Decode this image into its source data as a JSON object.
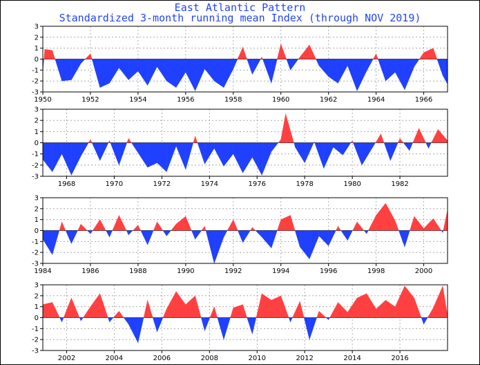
{
  "title": "East Atlantic Pattern",
  "subtitle": "Standardized 3-month running mean Index (through NOV 2019)",
  "colors": {
    "positive": "#ff4040",
    "negative": "#2040ff",
    "grid": "#999999",
    "title": "#2244ff"
  },
  "chart_data": [
    {
      "type": "area",
      "x_range": [
        1950.0,
        1967.0
      ],
      "ylim": [
        -3,
        3
      ],
      "y_ticks": [
        -3,
        -2,
        -1,
        0,
        1,
        2,
        3
      ],
      "x_ticks": [
        1950,
        1952,
        1954,
        1956,
        1958,
        1960,
        1962,
        1964,
        1966
      ],
      "grid": true,
      "x": [
        1950.0,
        1950.08,
        1950.4,
        1950.8,
        1951.2,
        1951.6,
        1952.0,
        1952.4,
        1952.8,
        1953.2,
        1953.6,
        1954.0,
        1954.4,
        1954.8,
        1955.2,
        1955.6,
        1956.0,
        1956.4,
        1956.8,
        1957.2,
        1957.6,
        1958.0,
        1958.4,
        1958.8,
        1959.2,
        1959.6,
        1960.0,
        1960.4,
        1960.8,
        1961.2,
        1961.6,
        1962.0,
        1962.4,
        1962.8,
        1963.2,
        1963.6,
        1964.0,
        1964.4,
        1964.8,
        1965.2,
        1965.6,
        1966.0,
        1966.4,
        1966.8,
        1967.0
      ],
      "y": [
        -1.2,
        0.9,
        0.8,
        -2.0,
        -1.9,
        -0.4,
        0.5,
        -2.6,
        -2.2,
        -0.8,
        -1.9,
        -1.1,
        -2.4,
        -0.7,
        -2.0,
        -2.6,
        -1.2,
        -2.9,
        -0.9,
        -2.0,
        -2.6,
        -0.9,
        1.1,
        -1.4,
        0.2,
        -2.2,
        1.4,
        -1.0,
        0.2,
        1.3,
        -0.6,
        -1.6,
        -2.2,
        -0.6,
        -2.9,
        -1.1,
        0.5,
        -2.0,
        -1.2,
        -2.8,
        -0.7,
        0.6,
        1.0,
        -1.5,
        -2.3
      ]
    },
    {
      "type": "area",
      "x_range": [
        1967.0,
        1984.0
      ],
      "ylim": [
        -3,
        3
      ],
      "y_ticks": [
        -3,
        -2,
        -1,
        0,
        1,
        2,
        3
      ],
      "x_ticks": [
        1968,
        1970,
        1972,
        1974,
        1976,
        1978,
        1980,
        1982
      ],
      "grid": true,
      "x": [
        1967.0,
        1967.4,
        1967.8,
        1968.2,
        1968.6,
        1969.0,
        1969.4,
        1969.8,
        1970.2,
        1970.6,
        1971.0,
        1971.4,
        1971.8,
        1972.2,
        1972.6,
        1973.0,
        1973.4,
        1973.8,
        1974.2,
        1974.6,
        1975.0,
        1975.4,
        1975.8,
        1976.2,
        1976.6,
        1977.0,
        1977.2,
        1977.6,
        1978.0,
        1978.4,
        1978.8,
        1979.2,
        1979.6,
        1980.0,
        1980.4,
        1980.8,
        1981.2,
        1981.6,
        1982.0,
        1982.4,
        1982.8,
        1983.2,
        1983.6,
        1984.0
      ],
      "y": [
        -1.5,
        -2.6,
        -1.0,
        -2.9,
        -1.2,
        0.3,
        -1.6,
        0.2,
        -2.0,
        0.4,
        -0.9,
        -2.2,
        -1.8,
        -2.6,
        -0.3,
        -2.4,
        0.6,
        -1.9,
        -0.5,
        -2.1,
        -1.0,
        -2.7,
        -1.3,
        -2.9,
        -0.8,
        0.3,
        2.6,
        -0.4,
        -1.8,
        0.1,
        -2.3,
        -0.4,
        -1.1,
        0.2,
        -2.0,
        -0.6,
        0.8,
        -1.6,
        0.4,
        -0.7,
        1.3,
        -0.5,
        1.2,
        0.2
      ]
    },
    {
      "type": "area",
      "x_range": [
        1984.0,
        2001.0
      ],
      "ylim": [
        -3,
        3
      ],
      "y_ticks": [
        -3,
        -2,
        -1,
        0,
        1,
        2,
        3
      ],
      "x_ticks": [
        1984,
        1986,
        1988,
        1990,
        1992,
        1994,
        1996,
        1998,
        2000
      ],
      "grid": true,
      "x": [
        1984.0,
        1984.4,
        1984.8,
        1985.2,
        1985.6,
        1986.0,
        1986.4,
        1986.8,
        1987.2,
        1987.6,
        1988.0,
        1988.4,
        1988.8,
        1989.2,
        1989.6,
        1990.0,
        1990.4,
        1990.8,
        1991.2,
        1991.6,
        1992.0,
        1992.4,
        1992.8,
        1993.2,
        1993.6,
        1994.0,
        1994.4,
        1994.8,
        1995.2,
        1995.6,
        1996.0,
        1996.4,
        1996.8,
        1997.2,
        1997.6,
        1998.0,
        1998.4,
        1998.8,
        1999.2,
        1999.6,
        2000.0,
        2000.4,
        2000.8,
        2001.0
      ],
      "y": [
        -0.8,
        -2.2,
        0.8,
        -1.2,
        0.6,
        -0.3,
        1.0,
        -0.6,
        1.4,
        -0.4,
        0.5,
        -1.3,
        0.8,
        -0.5,
        0.6,
        1.3,
        -0.8,
        0.4,
        -3.0,
        -0.6,
        1.0,
        -1.1,
        0.3,
        -0.6,
        -1.6,
        1.0,
        1.4,
        -1.5,
        -2.6,
        -0.5,
        -1.4,
        0.4,
        -0.9,
        0.8,
        -0.3,
        1.4,
        2.5,
        0.9,
        -1.5,
        1.3,
        0.2,
        1.1,
        -0.2,
        1.9
      ]
    },
    {
      "type": "area",
      "x_range": [
        2001.0,
        2018.0
      ],
      "ylim": [
        -3,
        3
      ],
      "y_ticks": [
        -3,
        -2,
        -1,
        0,
        1,
        2,
        3
      ],
      "x_ticks": [
        2002,
        2004,
        2006,
        2008,
        2010,
        2012,
        2014,
        2016
      ],
      "grid": true,
      "x": [
        2001.0,
        2001.4,
        2001.8,
        2002.2,
        2002.6,
        2003.0,
        2003.4,
        2003.8,
        2004.2,
        2004.6,
        2005.0,
        2005.4,
        2005.8,
        2006.2,
        2006.6,
        2007.0,
        2007.4,
        2007.8,
        2008.2,
        2008.6,
        2009.0,
        2009.4,
        2009.8,
        2010.2,
        2010.6,
        2011.0,
        2011.4,
        2011.8,
        2012.2,
        2012.6,
        2013.0,
        2013.4,
        2013.8,
        2014.2,
        2014.6,
        2015.0,
        2015.4,
        2015.8,
        2016.2,
        2016.6,
        2017.0,
        2017.4,
        2017.8,
        2018.0
      ],
      "y": [
        1.2,
        1.4,
        -0.4,
        1.8,
        -0.3,
        1.0,
        2.2,
        -0.4,
        0.6,
        -0.6,
        -2.3,
        1.6,
        -1.3,
        0.8,
        2.4,
        1.2,
        2.0,
        -1.2,
        1.0,
        -2.0,
        0.9,
        1.2,
        -1.5,
        2.2,
        1.6,
        2.0,
        -0.4,
        1.5,
        -2.0,
        0.6,
        -0.2,
        1.4,
        0.5,
        1.8,
        2.2,
        0.8,
        1.6,
        1.0,
        2.9,
        1.8,
        -0.6,
        0.9,
        2.9,
        0.2
      ]
    }
  ]
}
